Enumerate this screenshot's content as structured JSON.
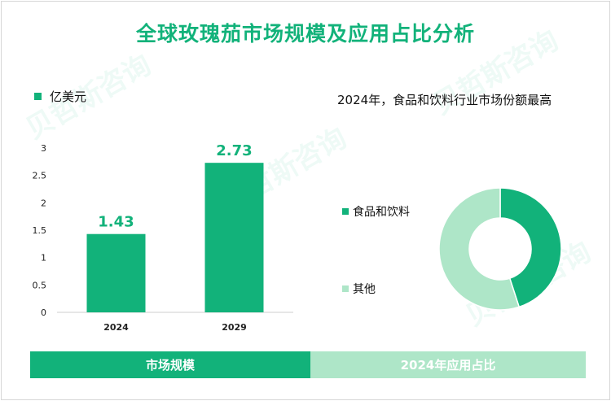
{
  "title": "全球玫瑰茄市场规模及应用占比分析",
  "unit_legend": {
    "label": "亿美元",
    "color": "#12b27a"
  },
  "pie_subtitle": "2024年，食品和饮料行业市场份额最高",
  "footer": {
    "left_tab": "市场规模",
    "right_tab": "2024年应用占比"
  },
  "watermark": "贝哲斯咨询",
  "chart_data": [
    {
      "type": "bar",
      "title": "市场规模",
      "categories": [
        "2024",
        "2029"
      ],
      "values": [
        1.43,
        2.73
      ],
      "value_labels": [
        "1.43",
        "2.73"
      ],
      "ylim": [
        0,
        3
      ],
      "yticks": [
        0,
        0.5,
        1,
        1.5,
        2,
        2.5,
        3
      ],
      "ytick_labels": [
        "0",
        "0.5",
        "1",
        "1.5",
        "2",
        "2.5",
        "3"
      ],
      "ylabel": "亿美元",
      "color": "#12b27a",
      "grid": false
    },
    {
      "type": "pie",
      "title": "2024年应用占比",
      "donut": true,
      "slices": [
        {
          "label": "食品和饮料",
          "value": 45,
          "color": "#12b27a"
        },
        {
          "label": "其他",
          "value": 55,
          "color": "#aee6c8"
        }
      ]
    }
  ]
}
